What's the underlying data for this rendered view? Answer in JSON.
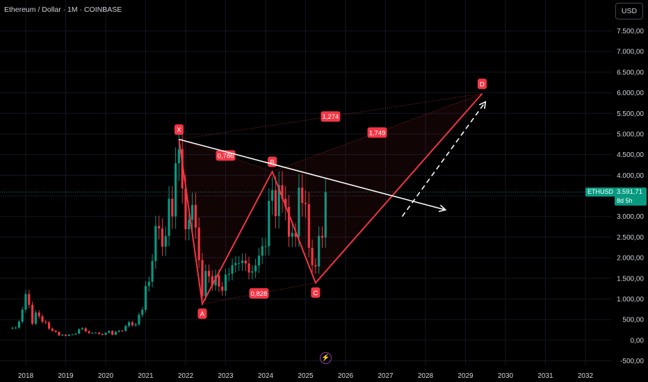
{
  "header": {
    "title": "Ethereum / Dollar · 1M · COINBASE",
    "currency_button": "USD"
  },
  "price_tag": {
    "symbol": "ETHUSD",
    "price": "3.591,71",
    "countdown": "8d 5h"
  },
  "chart_data": {
    "type": "candlestick",
    "x_ticks": [
      "2018",
      "2019",
      "2020",
      "2021",
      "2022",
      "2023",
      "2024",
      "2025",
      "2026",
      "2027",
      "2028",
      "2029",
      "2030",
      "2031",
      "2032"
    ],
    "y_ticks": [
      "7.500,00",
      "7.000,00",
      "6.500,00",
      "6.000,00",
      "5.500,00",
      "5.000,00",
      "4.500,00",
      "4.000,00",
      "3.500,00",
      "3.000,00",
      "2.500,00",
      "2.000,00",
      "1.500,00",
      "1.000,00",
      "500,00",
      "0,00",
      "-500,00"
    ],
    "y_tick_values": [
      7500,
      7000,
      6500,
      6000,
      5500,
      5000,
      4500,
      4000,
      3500,
      3000,
      2500,
      2000,
      1500,
      1000,
      500,
      0,
      -500
    ],
    "ylim": [
      -600,
      8000
    ],
    "last_price": 3591.71,
    "monthly_closes": [
      {
        "date": "2017-09",
        "close": 300
      },
      {
        "date": "2017-10",
        "close": 305
      },
      {
        "date": "2017-11",
        "close": 450
      },
      {
        "date": "2017-12",
        "close": 740
      },
      {
        "date": "2018-01",
        "close": 1120
      },
      {
        "date": "2018-02",
        "close": 860
      },
      {
        "date": "2018-03",
        "close": 400
      },
      {
        "date": "2018-04",
        "close": 670
      },
      {
        "date": "2018-05",
        "close": 580
      },
      {
        "date": "2018-06",
        "close": 450
      },
      {
        "date": "2018-07",
        "close": 430
      },
      {
        "date": "2018-08",
        "close": 280
      },
      {
        "date": "2018-09",
        "close": 230
      },
      {
        "date": "2018-10",
        "close": 200
      },
      {
        "date": "2018-11",
        "close": 115
      },
      {
        "date": "2018-12",
        "close": 135
      },
      {
        "date": "2019-01",
        "close": 105
      },
      {
        "date": "2019-02",
        "close": 135
      },
      {
        "date": "2019-03",
        "close": 140
      },
      {
        "date": "2019-04",
        "close": 160
      },
      {
        "date": "2019-05",
        "close": 265
      },
      {
        "date": "2019-06",
        "close": 290
      },
      {
        "date": "2019-07",
        "close": 215
      },
      {
        "date": "2019-08",
        "close": 170
      },
      {
        "date": "2019-09",
        "close": 180
      },
      {
        "date": "2019-10",
        "close": 182
      },
      {
        "date": "2019-11",
        "close": 152
      },
      {
        "date": "2019-12",
        "close": 130
      },
      {
        "date": "2020-01",
        "close": 180
      },
      {
        "date": "2020-02",
        "close": 225
      },
      {
        "date": "2020-03",
        "close": 133
      },
      {
        "date": "2020-04",
        "close": 206
      },
      {
        "date": "2020-05",
        "close": 231
      },
      {
        "date": "2020-06",
        "close": 226
      },
      {
        "date": "2020-07",
        "close": 345
      },
      {
        "date": "2020-08",
        "close": 434
      },
      {
        "date": "2020-09",
        "close": 360
      },
      {
        "date": "2020-10",
        "close": 386
      },
      {
        "date": "2020-11",
        "close": 615
      },
      {
        "date": "2020-12",
        "close": 737
      },
      {
        "date": "2021-01",
        "close": 1315
      },
      {
        "date": "2021-02",
        "close": 1420
      },
      {
        "date": "2021-03",
        "close": 1920
      },
      {
        "date": "2021-04",
        "close": 2770
      },
      {
        "date": "2021-05",
        "close": 2710
      },
      {
        "date": "2021-06",
        "close": 2270
      },
      {
        "date": "2021-07",
        "close": 2530
      },
      {
        "date": "2021-08",
        "close": 3430
      },
      {
        "date": "2021-09",
        "close": 3000
      },
      {
        "date": "2021-10",
        "close": 4290
      },
      {
        "date": "2021-11",
        "close": 4630
      },
      {
        "date": "2021-12",
        "close": 3680
      },
      {
        "date": "2022-01",
        "close": 2690
      },
      {
        "date": "2022-02",
        "close": 2920
      },
      {
        "date": "2022-03",
        "close": 3280
      },
      {
        "date": "2022-04",
        "close": 2730
      },
      {
        "date": "2022-05",
        "close": 1940
      },
      {
        "date": "2022-06",
        "close": 1070
      },
      {
        "date": "2022-07",
        "close": 1680
      },
      {
        "date": "2022-08",
        "close": 1550
      },
      {
        "date": "2022-09",
        "close": 1330
      },
      {
        "date": "2022-10",
        "close": 1570
      },
      {
        "date": "2022-11",
        "close": 1300
      },
      {
        "date": "2022-12",
        "close": 1200
      },
      {
        "date": "2023-01",
        "close": 1590
      },
      {
        "date": "2023-02",
        "close": 1610
      },
      {
        "date": "2023-03",
        "close": 1820
      },
      {
        "date": "2023-04",
        "close": 1870
      },
      {
        "date": "2023-05",
        "close": 1870
      },
      {
        "date": "2023-06",
        "close": 1930
      },
      {
        "date": "2023-07",
        "close": 1860
      },
      {
        "date": "2023-08",
        "close": 1640
      },
      {
        "date": "2023-09",
        "close": 1670
      },
      {
        "date": "2023-10",
        "close": 1810
      },
      {
        "date": "2023-11",
        "close": 2050
      },
      {
        "date": "2023-12",
        "close": 2280
      },
      {
        "date": "2024-01",
        "close": 2280
      },
      {
        "date": "2024-02",
        "close": 3380
      },
      {
        "date": "2024-03",
        "close": 3640
      },
      {
        "date": "2024-04",
        "close": 3010
      },
      {
        "date": "2024-05",
        "close": 3760
      },
      {
        "date": "2024-06",
        "close": 3430
      },
      {
        "date": "2024-07",
        "close": 3230
      },
      {
        "date": "2024-08",
        "close": 2510
      },
      {
        "date": "2024-09",
        "close": 2600
      },
      {
        "date": "2024-10",
        "close": 2510
      },
      {
        "date": "2024-11",
        "close": 3700
      },
      {
        "date": "2024-12",
        "close": 3330
      },
      {
        "date": "2025-01",
        "close": 3300
      },
      {
        "date": "2025-02",
        "close": 2240
      },
      {
        "date": "2025-03",
        "close": 1820
      },
      {
        "date": "2025-04",
        "close": 1790
      },
      {
        "date": "2025-05",
        "close": 2530
      },
      {
        "date": "2025-06",
        "close": 2490
      },
      {
        "date": "2025-07",
        "close": 3591.71
      }
    ],
    "harmonic_pattern": {
      "points": [
        {
          "label": "X",
          "date": "2021-11",
          "value": 4870
        },
        {
          "label": "A",
          "date": "2022-06",
          "value": 880
        },
        {
          "label": "B",
          "date": "2024-03",
          "value": 4090
        },
        {
          "label": "C",
          "date": "2025-04",
          "value": 1390
        },
        {
          "label": "D",
          "date": "2029-06",
          "value": 5980
        }
      ],
      "ratios": [
        "0,786",
        "0,828",
        "1,749",
        "1,274"
      ]
    },
    "trendline": {
      "start": {
        "date": "2021-11",
        "value": 4870
      },
      "end": {
        "date": "2028-07",
        "value": 3160
      }
    },
    "projection": {
      "start": {
        "date": "2027-06",
        "value": 3000
      },
      "end": {
        "date": "2029-07",
        "value": 5780
      }
    },
    "colors": {
      "up": "#089981",
      "down": "#f23645",
      "pattern": "#f23645",
      "trend": "#ffffff",
      "grid": "#131722",
      "axis_text": "#d1d4dc"
    }
  }
}
